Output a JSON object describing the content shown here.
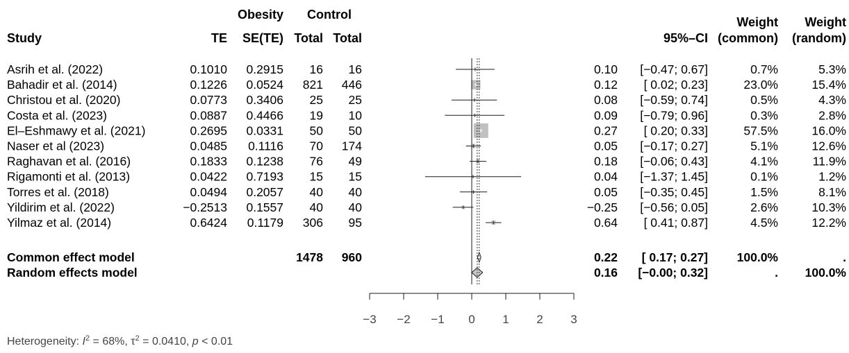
{
  "chart_data": {
    "type": "forest",
    "header": {
      "group_top_1": "Obesity",
      "group_top_2": "Control",
      "study": "Study",
      "te": "TE",
      "sete": "SE(TE)",
      "total1": "Total",
      "total2": "Total",
      "ci": "95%–CI",
      "w_common_1": "Weight",
      "w_common_2": "(common)",
      "w_random_1": "Weight",
      "w_random_2": "(random)"
    },
    "studies": [
      {
        "name": "Asrih et al. (2022)",
        "te": "0.1010",
        "sete": "0.2915",
        "n1": "16",
        "n2": "16",
        "est": "0.10",
        "ci": "[−0.47; 0.67]",
        "wc": "0.7%",
        "wr": "5.3%",
        "te_val": 0.1,
        "lo": -0.47,
        "hi": 0.67,
        "w": 0.7
      },
      {
        "name": "Bahadir et al. (2014)",
        "te": "0.1226",
        "sete": "0.0524",
        "n1": "821",
        "n2": "446",
        "est": "0.12",
        "ci": "[ 0.02; 0.23]",
        "wc": "23.0%",
        "wr": "15.4%",
        "te_val": 0.12,
        "lo": 0.02,
        "hi": 0.23,
        "w": 23.0
      },
      {
        "name": "Christou et al. (2020)",
        "te": "0.0773",
        "sete": "0.3406",
        "n1": "25",
        "n2": "25",
        "est": "0.08",
        "ci": "[−0.59; 0.74]",
        "wc": "0.5%",
        "wr": "4.3%",
        "te_val": 0.08,
        "lo": -0.59,
        "hi": 0.74,
        "w": 0.5
      },
      {
        "name": "Costa et al. (2023)",
        "te": "0.0887",
        "sete": "0.4466",
        "n1": "19",
        "n2": "10",
        "est": "0.09",
        "ci": "[−0.79; 0.96]",
        "wc": "0.3%",
        "wr": "2.8%",
        "te_val": 0.09,
        "lo": -0.79,
        "hi": 0.96,
        "w": 0.3
      },
      {
        "name": "El–Eshmawy et al. (2021)",
        "te": "0.2695",
        "sete": "0.0331",
        "n1": "50",
        "n2": "50",
        "est": "0.27",
        "ci": "[ 0.20; 0.33]",
        "wc": "57.5%",
        "wr": "16.0%",
        "te_val": 0.27,
        "lo": 0.2,
        "hi": 0.33,
        "w": 57.5
      },
      {
        "name": "Naser et al (2023)",
        "te": "0.0485",
        "sete": "0.1116",
        "n1": "70",
        "n2": "174",
        "est": "0.05",
        "ci": "[−0.17; 0.27]",
        "wc": "5.1%",
        "wr": "12.6%",
        "te_val": 0.05,
        "lo": -0.17,
        "hi": 0.27,
        "w": 5.1
      },
      {
        "name": "Raghavan et al. (2016)",
        "te": "0.1833",
        "sete": "0.1238",
        "n1": "76",
        "n2": "49",
        "est": "0.18",
        "ci": "[−0.06; 0.43]",
        "wc": "4.1%",
        "wr": "11.9%",
        "te_val": 0.18,
        "lo": -0.06,
        "hi": 0.43,
        "w": 4.1
      },
      {
        "name": "Rigamonti et al. (2013)",
        "te": "0.0422",
        "sete": "0.7193",
        "n1": "15",
        "n2": "15",
        "est": "0.04",
        "ci": "[−1.37; 1.45]",
        "wc": "0.1%",
        "wr": "1.2%",
        "te_val": 0.04,
        "lo": -1.37,
        "hi": 1.45,
        "w": 0.1
      },
      {
        "name": "Torres et al. (2018)",
        "te": "0.0494",
        "sete": "0.2057",
        "n1": "40",
        "n2": "40",
        "est": "0.05",
        "ci": "[−0.35; 0.45]",
        "wc": "1.5%",
        "wr": "8.1%",
        "te_val": 0.05,
        "lo": -0.35,
        "hi": 0.45,
        "w": 1.5
      },
      {
        "name": "Yildirim et al. (2022)",
        "te": "−0.2513",
        "sete": "0.1557",
        "n1": "40",
        "n2": "40",
        "est": "−0.25",
        "ci": "[−0.56; 0.05]",
        "wc": "2.6%",
        "wr": "10.3%",
        "te_val": -0.25,
        "lo": -0.56,
        "hi": 0.05,
        "w": 2.6
      },
      {
        "name": "Yilmaz et al. (2014)",
        "te": "0.6424",
        "sete": "0.1179",
        "n1": "306",
        "n2": "95",
        "est": "0.64",
        "ci": "[ 0.41; 0.87]",
        "wc": "4.5%",
        "wr": "12.2%",
        "te_val": 0.64,
        "lo": 0.41,
        "hi": 0.87,
        "w": 4.5
      }
    ],
    "pooled": [
      {
        "name": "Common effect model",
        "n1": "1478",
        "n2": "960",
        "est": "0.22",
        "ci": "[ 0.17; 0.27]",
        "wc": "100.0%",
        "wr": ".",
        "te_val": 0.22,
        "lo": 0.17,
        "hi": 0.27,
        "fill": "#ffffff"
      },
      {
        "name": "Random effects model",
        "n1": "",
        "n2": "",
        "est": "0.16",
        "ci": "[−0.00; 0.32]",
        "wc": ".",
        "wr": "100.0%",
        "te_val": 0.16,
        "lo": -0.0,
        "hi": 0.32,
        "fill": "#c8c8c8"
      }
    ],
    "xaxis": {
      "min": -3,
      "max": 3,
      "ticks": [
        -3,
        -2,
        -1,
        0,
        1,
        2,
        3
      ],
      "tick_labels": [
        "−3",
        "−2",
        "−1",
        "0",
        "1",
        "2",
        "3"
      ]
    },
    "heterogeneity": {
      "prefix": "Heterogeneity: ",
      "i2_sym": "I",
      "i2_val": " = 68%, ",
      "tau_sym": "τ",
      "tau_val": " = 0.0410, ",
      "p_sym": "p",
      "p_val": " < 0.01"
    },
    "colors": {
      "square": "#c0c0c0",
      "line": "#1a1a1a",
      "dotted": "#333333"
    }
  }
}
